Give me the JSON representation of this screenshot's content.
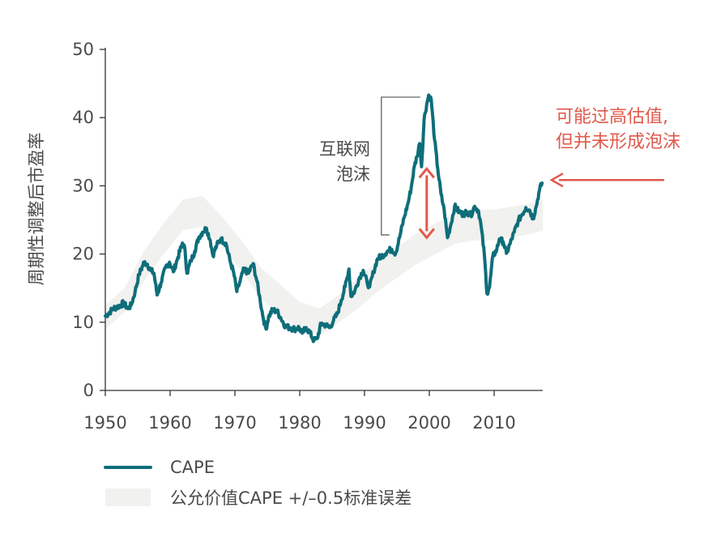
{
  "chart_data": {
    "type": "line",
    "title": "",
    "xlabel": "",
    "ylabel": "周期性调整后市盈率",
    "xlim": [
      1950,
      2017.5
    ],
    "ylim": [
      0,
      50
    ],
    "xticks": [
      "1950",
      "1960",
      "1970",
      "1980",
      "1990",
      "2000",
      "2010"
    ],
    "yticks": [
      "0",
      "10",
      "20",
      "30",
      "40",
      "50"
    ],
    "series": [
      {
        "name": "CAPE",
        "color": "#0e6e7a",
        "points": [
          [
            1950.0,
            10.9
          ],
          [
            1950.6,
            11.4
          ],
          [
            1951.2,
            12.0
          ],
          [
            1952.0,
            12.3
          ],
          [
            1952.8,
            12.8
          ],
          [
            1953.5,
            12.0
          ],
          [
            1954.0,
            12.5
          ],
          [
            1954.6,
            14.5
          ],
          [
            1955.2,
            17.0
          ],
          [
            1956.0,
            18.8
          ],
          [
            1956.5,
            18.5
          ],
          [
            1957.0,
            17.6
          ],
          [
            1957.5,
            17.2
          ],
          [
            1958.0,
            14.0
          ],
          [
            1958.6,
            15.8
          ],
          [
            1959.3,
            18.0
          ],
          [
            1959.9,
            18.8
          ],
          [
            1960.5,
            17.4
          ],
          [
            1961.2,
            19.5
          ],
          [
            1961.9,
            21.6
          ],
          [
            1962.3,
            20.6
          ],
          [
            1962.6,
            17.2
          ],
          [
            1963.2,
            19.0
          ],
          [
            1963.8,
            20.4
          ],
          [
            1964.4,
            22.4
          ],
          [
            1965.0,
            23.2
          ],
          [
            1965.6,
            23.8
          ],
          [
            1966.2,
            22.0
          ],
          [
            1966.6,
            19.8
          ],
          [
            1967.2,
            21.3
          ],
          [
            1967.8,
            22.2
          ],
          [
            1968.6,
            21.6
          ],
          [
            1969.3,
            18.8
          ],
          [
            1969.8,
            17.3
          ],
          [
            1970.3,
            14.5
          ],
          [
            1970.8,
            16.0
          ],
          [
            1971.4,
            17.8
          ],
          [
            1972.1,
            17.2
          ],
          [
            1972.8,
            18.6
          ],
          [
            1973.4,
            16.0
          ],
          [
            1973.9,
            13.2
          ],
          [
            1974.4,
            10.5
          ],
          [
            1974.8,
            9.0
          ],
          [
            1975.2,
            10.8
          ],
          [
            1975.8,
            11.8
          ],
          [
            1976.5,
            11.6
          ],
          [
            1977.1,
            10.6
          ],
          [
            1977.8,
            9.4
          ],
          [
            1978.5,
            9.2
          ],
          [
            1979.2,
            9.0
          ],
          [
            1979.9,
            9.2
          ],
          [
            1980.4,
            8.4
          ],
          [
            1981.0,
            9.2
          ],
          [
            1981.6,
            8.4
          ],
          [
            1982.2,
            7.3
          ],
          [
            1982.7,
            7.6
          ],
          [
            1983.3,
            9.8
          ],
          [
            1984.0,
            9.6
          ],
          [
            1984.6,
            9.2
          ],
          [
            1985.2,
            10.2
          ],
          [
            1985.8,
            11.2
          ],
          [
            1986.4,
            13.2
          ],
          [
            1987.0,
            15.2
          ],
          [
            1987.6,
            17.8
          ],
          [
            1987.9,
            13.8
          ],
          [
            1988.5,
            14.6
          ],
          [
            1989.2,
            16.5
          ],
          [
            1989.8,
            17.6
          ],
          [
            1990.4,
            15.8
          ],
          [
            1990.8,
            15.2
          ],
          [
            1991.4,
            17.4
          ],
          [
            1992.0,
            19.3
          ],
          [
            1992.8,
            19.8
          ],
          [
            1993.5,
            20.4
          ],
          [
            1994.2,
            20.7
          ],
          [
            1994.8,
            20.1
          ],
          [
            1995.4,
            22.4
          ],
          [
            1996.1,
            25.3
          ],
          [
            1996.7,
            27.4
          ],
          [
            1997.2,
            29.7
          ],
          [
            1997.7,
            32.9
          ],
          [
            1998.1,
            34.3
          ],
          [
            1998.5,
            36.2
          ],
          [
            1998.8,
            32.8
          ],
          [
            1999.2,
            39.8
          ],
          [
            1999.6,
            42.0
          ],
          [
            1999.9,
            43.3
          ],
          [
            2000.3,
            42.6
          ],
          [
            2000.8,
            36.8
          ],
          [
            2001.3,
            32.5
          ],
          [
            2001.8,
            28.8
          ],
          [
            2002.3,
            26.4
          ],
          [
            2002.8,
            22.4
          ],
          [
            2003.3,
            24.2
          ],
          [
            2003.9,
            27.0
          ],
          [
            2004.6,
            26.2
          ],
          [
            2005.2,
            25.8
          ],
          [
            2005.8,
            26.2
          ],
          [
            2006.4,
            25.7
          ],
          [
            2007.0,
            27.0
          ],
          [
            2007.6,
            26.3
          ],
          [
            2008.0,
            24.0
          ],
          [
            2008.5,
            19.8
          ],
          [
            2008.9,
            14.2
          ],
          [
            2009.3,
            15.2
          ],
          [
            2009.8,
            19.7
          ],
          [
            2010.4,
            20.6
          ],
          [
            2010.8,
            22.2
          ],
          [
            2011.4,
            21.8
          ],
          [
            2011.9,
            20.1
          ],
          [
            2012.5,
            21.6
          ],
          [
            2013.1,
            23.2
          ],
          [
            2013.7,
            24.8
          ],
          [
            2014.3,
            25.8
          ],
          [
            2014.9,
            26.8
          ],
          [
            2015.5,
            26.4
          ],
          [
            2016.0,
            25.2
          ],
          [
            2016.5,
            27.0
          ],
          [
            2017.0,
            29.4
          ],
          [
            2017.4,
            30.4
          ]
        ]
      },
      {
        "name": "公允价值CAPE  +/–0.5标准误差",
        "color": "#f1f1ef",
        "band": [
          [
            1950,
            9.0,
            12.5
          ],
          [
            1953,
            11.5,
            15.0
          ],
          [
            1956,
            16.0,
            20.5
          ],
          [
            1959,
            20.0,
            24.5
          ],
          [
            1962,
            23.5,
            28.0
          ],
          [
            1965,
            24.0,
            28.5
          ],
          [
            1968,
            21.0,
            25.5
          ],
          [
            1971,
            17.5,
            22.0
          ],
          [
            1974,
            13.5,
            18.0
          ],
          [
            1977,
            11.0,
            15.5
          ],
          [
            1980,
            9.0,
            13.0
          ],
          [
            1983,
            8.0,
            12.0
          ],
          [
            1986,
            10.0,
            14.0
          ],
          [
            1989,
            12.0,
            16.5
          ],
          [
            1992,
            14.5,
            19.0
          ],
          [
            1995,
            16.5,
            21.0
          ],
          [
            1998,
            18.5,
            23.0
          ],
          [
            2001,
            20.0,
            24.5
          ],
          [
            2004,
            21.5,
            26.0
          ],
          [
            2007,
            22.0,
            26.5
          ],
          [
            2010,
            22.0,
            26.5
          ],
          [
            2013,
            22.5,
            27.0
          ],
          [
            2016,
            23.0,
            27.5
          ],
          [
            2017.5,
            23.5,
            28.0
          ]
        ]
      }
    ],
    "annotations": {
      "bubble_label_line1": "互联网",
      "bubble_label_line2": "泡沫",
      "callout_line1": "可能过高估值,",
      "callout_line2": "但并未形成泡沫",
      "callout_color": "#e0594b",
      "gap_arrow": {
        "x": 1999.6,
        "y_from": 32.5,
        "y_to": 22.4
      },
      "bracket": {
        "x_from": 1992.6,
        "x_to": 1998.6,
        "y_top": 43.0,
        "y_bottom": 22.8
      },
      "callout_arrow_y": 30.5
    },
    "legend": {
      "placement": "bottom-left",
      "entries": [
        {
          "label": "CAPE",
          "color": "#0e6e7a"
        },
        {
          "label": "公允价值CAPE  +/–0.5标准误差",
          "color": "#f1f1ef"
        }
      ]
    }
  }
}
